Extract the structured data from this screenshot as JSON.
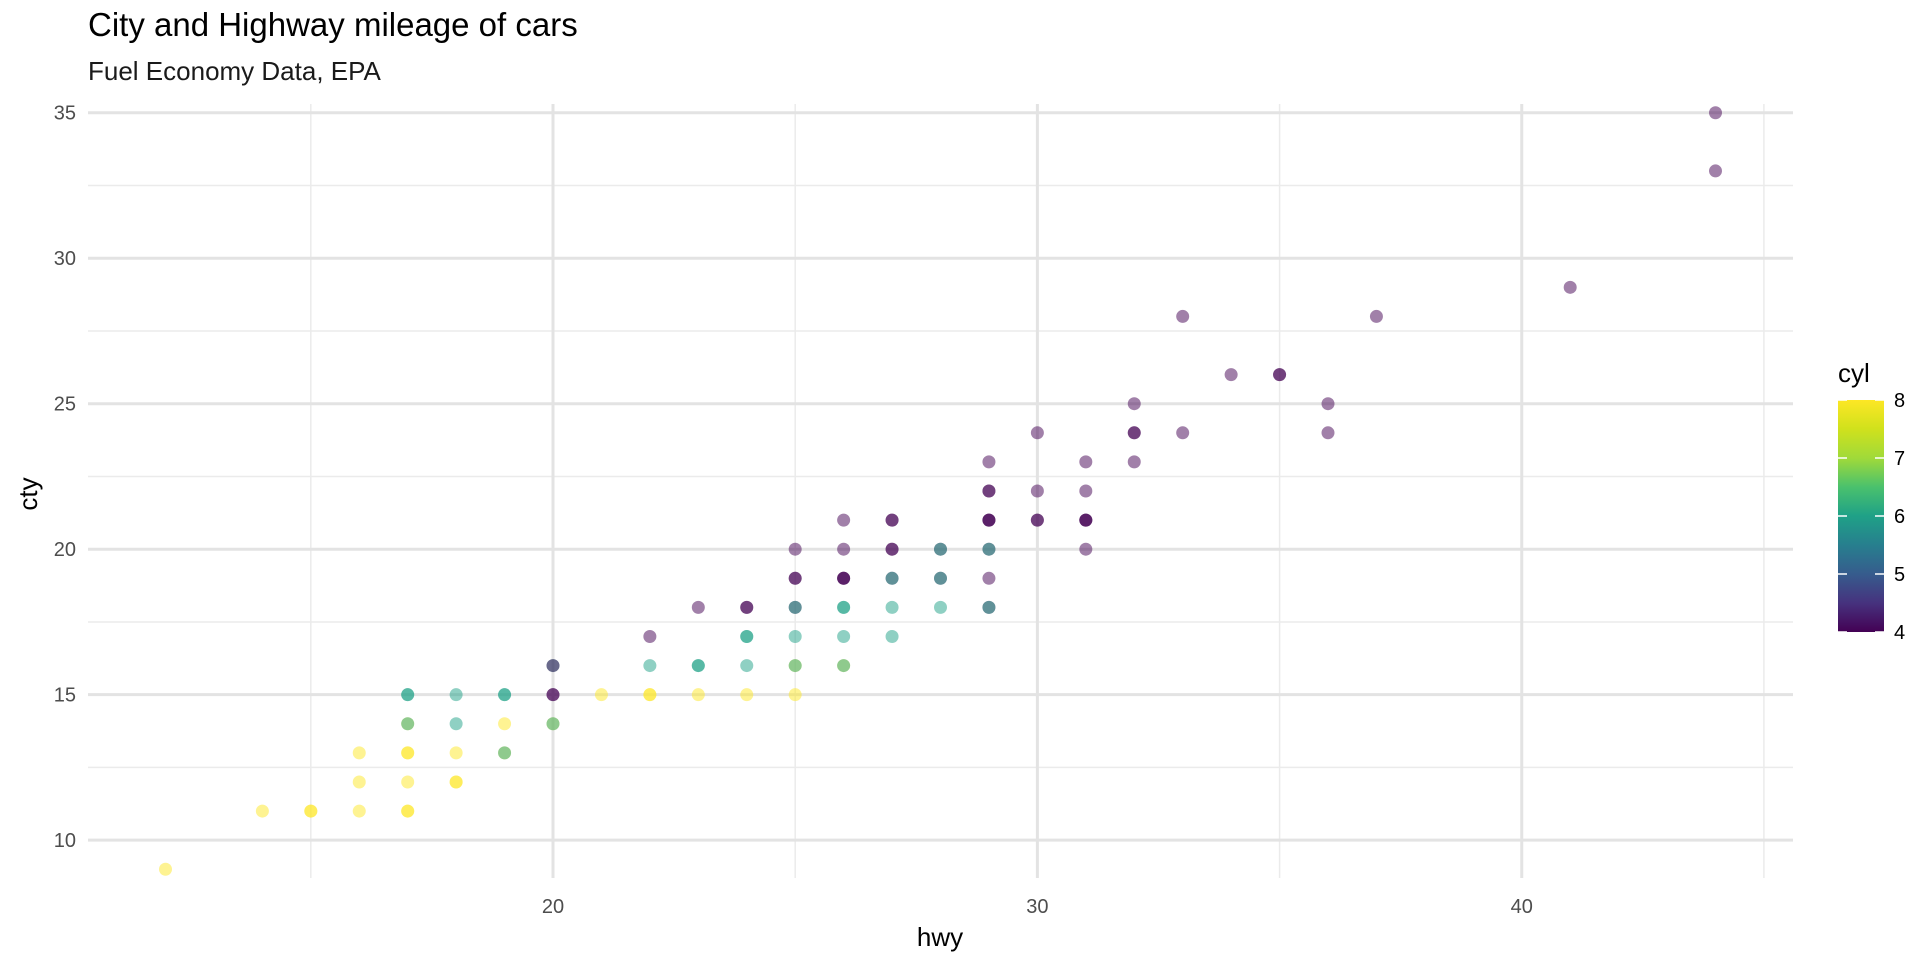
{
  "chart_data": {
    "type": "scatter",
    "title": "City and Highway mileage of cars",
    "subtitle": "Fuel Economy Data, EPA",
    "xlabel": "hwy",
    "ylabel": "cty",
    "xlim": [
      10.4,
      45.6
    ],
    "ylim": [
      8.7,
      35.3
    ],
    "x_ticks": [
      20,
      30,
      40
    ],
    "y_ticks": [
      10,
      15,
      20,
      25,
      30,
      35
    ],
    "x_minor_grid": [
      15,
      25,
      35,
      45
    ],
    "y_minor_grid": [
      12.5,
      17.5,
      22.5,
      27.5,
      32.5
    ],
    "grid": true,
    "legend": {
      "title": "cyl",
      "position": "right",
      "range": [
        4,
        8
      ],
      "ticks": [
        4,
        5,
        6,
        7,
        8
      ],
      "colormap": "viridis"
    },
    "point_alpha": 0.5,
    "points": [
      {
        "x": 12,
        "y": 9,
        "cyl": 8
      },
      {
        "x": 14,
        "y": 11,
        "cyl": 8
      },
      {
        "x": 15,
        "y": 11,
        "cyl": 8
      },
      {
        "x": 15,
        "y": 11,
        "cyl": 8
      },
      {
        "x": 16,
        "y": 11,
        "cyl": 8
      },
      {
        "x": 16,
        "y": 12,
        "cyl": 8
      },
      {
        "x": 16,
        "y": 13,
        "cyl": 8
      },
      {
        "x": 17,
        "y": 11,
        "cyl": 8
      },
      {
        "x": 17,
        "y": 11,
        "cyl": 8
      },
      {
        "x": 17,
        "y": 12,
        "cyl": 8
      },
      {
        "x": 17,
        "y": 13,
        "cyl": 8
      },
      {
        "x": 17,
        "y": 13,
        "cyl": 8
      },
      {
        "x": 17,
        "y": 14,
        "cyl": 8
      },
      {
        "x": 17,
        "y": 14,
        "cyl": 6
      },
      {
        "x": 17,
        "y": 15,
        "cyl": 6
      },
      {
        "x": 17,
        "y": 15,
        "cyl": 6
      },
      {
        "x": 18,
        "y": 12,
        "cyl": 8
      },
      {
        "x": 18,
        "y": 12,
        "cyl": 8
      },
      {
        "x": 18,
        "y": 13,
        "cyl": 8
      },
      {
        "x": 18,
        "y": 14,
        "cyl": 6
      },
      {
        "x": 18,
        "y": 15,
        "cyl": 6
      },
      {
        "x": 19,
        "y": 13,
        "cyl": 8
      },
      {
        "x": 19,
        "y": 13,
        "cyl": 6
      },
      {
        "x": 19,
        "y": 14,
        "cyl": 8
      },
      {
        "x": 19,
        "y": 15,
        "cyl": 6
      },
      {
        "x": 19,
        "y": 15,
        "cyl": 6
      },
      {
        "x": 20,
        "y": 14,
        "cyl": 8
      },
      {
        "x": 20,
        "y": 14,
        "cyl": 6
      },
      {
        "x": 20,
        "y": 15,
        "cyl": 4
      },
      {
        "x": 20,
        "y": 15,
        "cyl": 4
      },
      {
        "x": 20,
        "y": 16,
        "cyl": 6
      },
      {
        "x": 20,
        "y": 16,
        "cyl": 4
      },
      {
        "x": 21,
        "y": 15,
        "cyl": 8
      },
      {
        "x": 22,
        "y": 15,
        "cyl": 8
      },
      {
        "x": 22,
        "y": 15,
        "cyl": 8
      },
      {
        "x": 22,
        "y": 16,
        "cyl": 6
      },
      {
        "x": 22,
        "y": 17,
        "cyl": 4
      },
      {
        "x": 23,
        "y": 15,
        "cyl": 8
      },
      {
        "x": 23,
        "y": 16,
        "cyl": 6
      },
      {
        "x": 23,
        "y": 16,
        "cyl": 6
      },
      {
        "x": 23,
        "y": 18,
        "cyl": 4
      },
      {
        "x": 24,
        "y": 15,
        "cyl": 8
      },
      {
        "x": 24,
        "y": 16,
        "cyl": 6
      },
      {
        "x": 24,
        "y": 17,
        "cyl": 6
      },
      {
        "x": 24,
        "y": 17,
        "cyl": 6
      },
      {
        "x": 24,
        "y": 18,
        "cyl": 4
      },
      {
        "x": 24,
        "y": 18,
        "cyl": 4
      },
      {
        "x": 25,
        "y": 15,
        "cyl": 8
      },
      {
        "x": 25,
        "y": 16,
        "cyl": 8
      },
      {
        "x": 25,
        "y": 16,
        "cyl": 6
      },
      {
        "x": 25,
        "y": 17,
        "cyl": 6
      },
      {
        "x": 25,
        "y": 18,
        "cyl": 4
      },
      {
        "x": 25,
        "y": 18,
        "cyl": 6
      },
      {
        "x": 25,
        "y": 19,
        "cyl": 4
      },
      {
        "x": 25,
        "y": 19,
        "cyl": 4
      },
      {
        "x": 25,
        "y": 20,
        "cyl": 4
      },
      {
        "x": 26,
        "y": 16,
        "cyl": 8
      },
      {
        "x": 26,
        "y": 16,
        "cyl": 6
      },
      {
        "x": 26,
        "y": 17,
        "cyl": 6
      },
      {
        "x": 26,
        "y": 18,
        "cyl": 6
      },
      {
        "x": 26,
        "y": 18,
        "cyl": 6
      },
      {
        "x": 26,
        "y": 19,
        "cyl": 4
      },
      {
        "x": 26,
        "y": 19,
        "cyl": 4
      },
      {
        "x": 26,
        "y": 19,
        "cyl": 4
      },
      {
        "x": 26,
        "y": 20,
        "cyl": 4
      },
      {
        "x": 26,
        "y": 21,
        "cyl": 4
      },
      {
        "x": 27,
        "y": 17,
        "cyl": 6
      },
      {
        "x": 27,
        "y": 18,
        "cyl": 6
      },
      {
        "x": 27,
        "y": 19,
        "cyl": 4
      },
      {
        "x": 27,
        "y": 19,
        "cyl": 6
      },
      {
        "x": 27,
        "y": 20,
        "cyl": 4
      },
      {
        "x": 27,
        "y": 20,
        "cyl": 4
      },
      {
        "x": 27,
        "y": 21,
        "cyl": 4
      },
      {
        "x": 27,
        "y": 21,
        "cyl": 4
      },
      {
        "x": 28,
        "y": 18,
        "cyl": 6
      },
      {
        "x": 28,
        "y": 19,
        "cyl": 4
      },
      {
        "x": 28,
        "y": 19,
        "cyl": 6
      },
      {
        "x": 28,
        "y": 20,
        "cyl": 4
      },
      {
        "x": 28,
        "y": 20,
        "cyl": 6
      },
      {
        "x": 29,
        "y": 18,
        "cyl": 4
      },
      {
        "x": 29,
        "y": 18,
        "cyl": 6
      },
      {
        "x": 29,
        "y": 19,
        "cyl": 4
      },
      {
        "x": 29,
        "y": 20,
        "cyl": 4
      },
      {
        "x": 29,
        "y": 20,
        "cyl": 6
      },
      {
        "x": 29,
        "y": 21,
        "cyl": 4
      },
      {
        "x": 29,
        "y": 21,
        "cyl": 4
      },
      {
        "x": 29,
        "y": 21,
        "cyl": 4
      },
      {
        "x": 29,
        "y": 22,
        "cyl": 4
      },
      {
        "x": 29,
        "y": 22,
        "cyl": 4
      },
      {
        "x": 29,
        "y": 23,
        "cyl": 4
      },
      {
        "x": 30,
        "y": 21,
        "cyl": 4
      },
      {
        "x": 30,
        "y": 21,
        "cyl": 4
      },
      {
        "x": 30,
        "y": 22,
        "cyl": 4
      },
      {
        "x": 30,
        "y": 24,
        "cyl": 4
      },
      {
        "x": 31,
        "y": 20,
        "cyl": 4
      },
      {
        "x": 31,
        "y": 21,
        "cyl": 4
      },
      {
        "x": 31,
        "y": 21,
        "cyl": 4
      },
      {
        "x": 31,
        "y": 21,
        "cyl": 4
      },
      {
        "x": 31,
        "y": 22,
        "cyl": 4
      },
      {
        "x": 31,
        "y": 23,
        "cyl": 4
      },
      {
        "x": 32,
        "y": 23,
        "cyl": 4
      },
      {
        "x": 32,
        "y": 24,
        "cyl": 4
      },
      {
        "x": 32,
        "y": 24,
        "cyl": 4
      },
      {
        "x": 32,
        "y": 25,
        "cyl": 4
      },
      {
        "x": 33,
        "y": 24,
        "cyl": 4
      },
      {
        "x": 33,
        "y": 28,
        "cyl": 4
      },
      {
        "x": 34,
        "y": 26,
        "cyl": 4
      },
      {
        "x": 35,
        "y": 26,
        "cyl": 4
      },
      {
        "x": 35,
        "y": 26,
        "cyl": 4
      },
      {
        "x": 36,
        "y": 24,
        "cyl": 4
      },
      {
        "x": 36,
        "y": 25,
        "cyl": 4
      },
      {
        "x": 37,
        "y": 28,
        "cyl": 4
      },
      {
        "x": 41,
        "y": 29,
        "cyl": 4
      },
      {
        "x": 44,
        "y": 33,
        "cyl": 4
      },
      {
        "x": 44,
        "y": 35,
        "cyl": 4
      }
    ]
  }
}
